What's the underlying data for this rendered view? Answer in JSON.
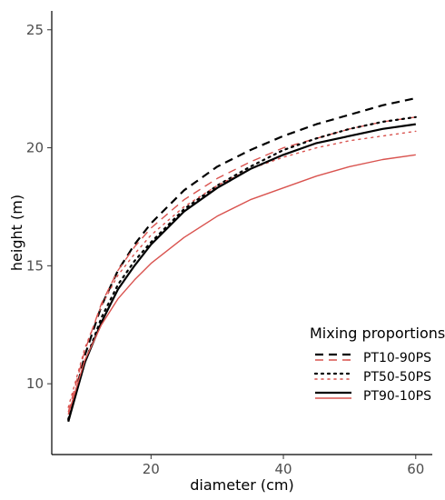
{
  "chart_data": {
    "type": "line",
    "xlabel": "diameter (cm)",
    "ylabel": "height (m)",
    "xlim": [
      5,
      62.5
    ],
    "ylim": [
      7,
      25.8
    ],
    "xticks": [
      20,
      40,
      60
    ],
    "yticks": [
      10,
      15,
      20,
      25
    ],
    "grid": false,
    "legend": {
      "title": "Mixing proportions",
      "placement": "bottom-right",
      "entries": [
        {
          "label": "PT10-90PS",
          "linestyle": "dashed"
        },
        {
          "label": "PT50-50PS",
          "linestyle": "dotted"
        },
        {
          "label": "PT90-10PS",
          "linestyle": "solid"
        }
      ]
    },
    "colors": {
      "black": "#000000",
      "red": "#d9534f"
    },
    "x": [
      7.5,
      10,
      12.5,
      15,
      17.5,
      20,
      25,
      30,
      35,
      40,
      45,
      50,
      55,
      60
    ],
    "series": [
      {
        "legend_index": 0,
        "color": "black",
        "linestyle": "dashed",
        "width": 2.2,
        "values": [
          8.4,
          11.2,
          13.3,
          14.8,
          15.9,
          16.8,
          18.2,
          19.2,
          19.9,
          20.5,
          21.0,
          21.4,
          21.8,
          22.1
        ]
      },
      {
        "legend_index": 0,
        "color": "red",
        "linestyle": "dashed",
        "width": 1.4,
        "values": [
          8.8,
          11.4,
          13.4,
          14.8,
          15.8,
          16.6,
          17.8,
          18.7,
          19.4,
          20.0,
          20.4,
          20.8,
          21.1,
          21.3
        ]
      },
      {
        "legend_index": 1,
        "color": "black",
        "linestyle": "dotted",
        "width": 2.2,
        "values": [
          8.5,
          10.9,
          12.8,
          14.2,
          15.2,
          16.0,
          17.4,
          18.4,
          19.2,
          19.9,
          20.4,
          20.8,
          21.1,
          21.3
        ]
      },
      {
        "legend_index": 1,
        "color": "red",
        "linestyle": "dotted",
        "width": 1.4,
        "values": [
          9.0,
          11.5,
          13.3,
          14.6,
          15.5,
          16.3,
          17.5,
          18.4,
          19.1,
          19.6,
          20.0,
          20.3,
          20.5,
          20.7
        ]
      },
      {
        "legend_index": 2,
        "color": "black",
        "linestyle": "solid",
        "width": 2.2,
        "values": [
          8.4,
          10.9,
          12.6,
          14.0,
          15.0,
          15.9,
          17.3,
          18.3,
          19.1,
          19.7,
          20.2,
          20.5,
          20.8,
          21.0
        ]
      },
      {
        "legend_index": 2,
        "color": "red",
        "linestyle": "solid",
        "width": 1.4,
        "values": [
          8.7,
          11.0,
          12.5,
          13.6,
          14.4,
          15.1,
          16.2,
          17.1,
          17.8,
          18.3,
          18.8,
          19.2,
          19.5,
          19.7
        ]
      }
    ]
  }
}
